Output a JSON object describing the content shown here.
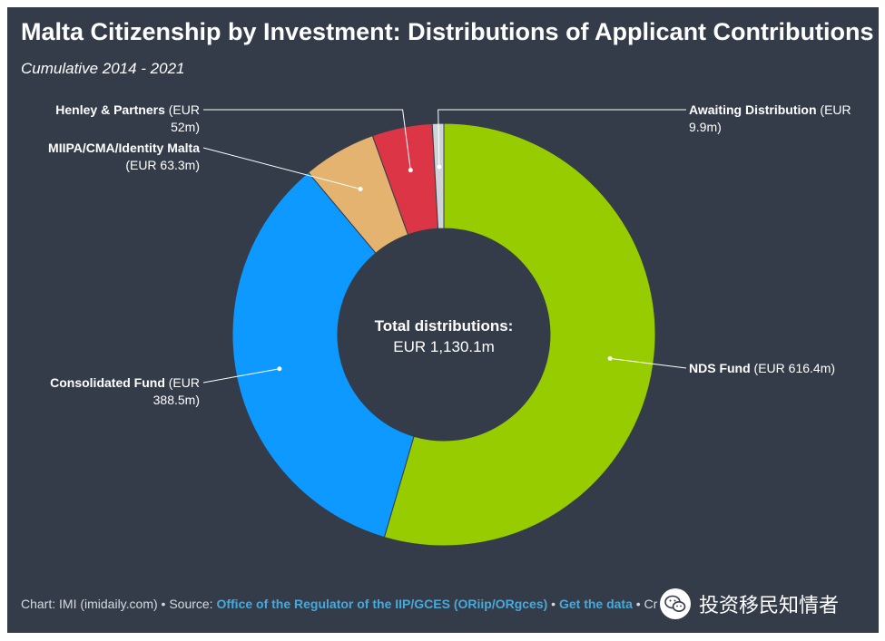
{
  "header": {
    "title": "Malta Citizenship by Investment: Distributions of Applicant Contributions",
    "subtitle": "Cumulative 2014 - 2021"
  },
  "chart_data": {
    "type": "pie",
    "subtype": "donut",
    "unit": "EUR m",
    "slices": [
      {
        "name": "NDS Fund",
        "value_text": "(EUR 616.4m)",
        "value": 616.4,
        "color": "#97cd00"
      },
      {
        "name": "Consolidated Fund",
        "value_text": "(EUR 388.5m)",
        "value": 388.5,
        "color": "#0d99ff"
      },
      {
        "name": "MIIPA/CMA/Identity Malta",
        "value_text": "(EUR 63.3m)",
        "value": 63.3,
        "color": "#e3b36f"
      },
      {
        "name": "Henley & Partners",
        "value_text": "(EUR 52m)",
        "value": 52.0,
        "color": "#dc3545"
      },
      {
        "name": "Awaiting Distribution",
        "value_text": "(EUR 9.9m)",
        "value": 9.9,
        "color": "#cfd4d8"
      }
    ],
    "center_title": "Total distributions:",
    "center_value": "EUR 1,130.1m"
  },
  "footer": {
    "prefix": "Chart: IMI (imidaily.com) • Source: ",
    "source_link": "Office of the Regulator of the IIP/GCES (ORiip/ORgces)",
    "separator": " • ",
    "data_link": "Get the data",
    "suffix": " • Cr"
  },
  "watermark": {
    "text": "投资移民知情者",
    "icon": "wechat-icon"
  }
}
